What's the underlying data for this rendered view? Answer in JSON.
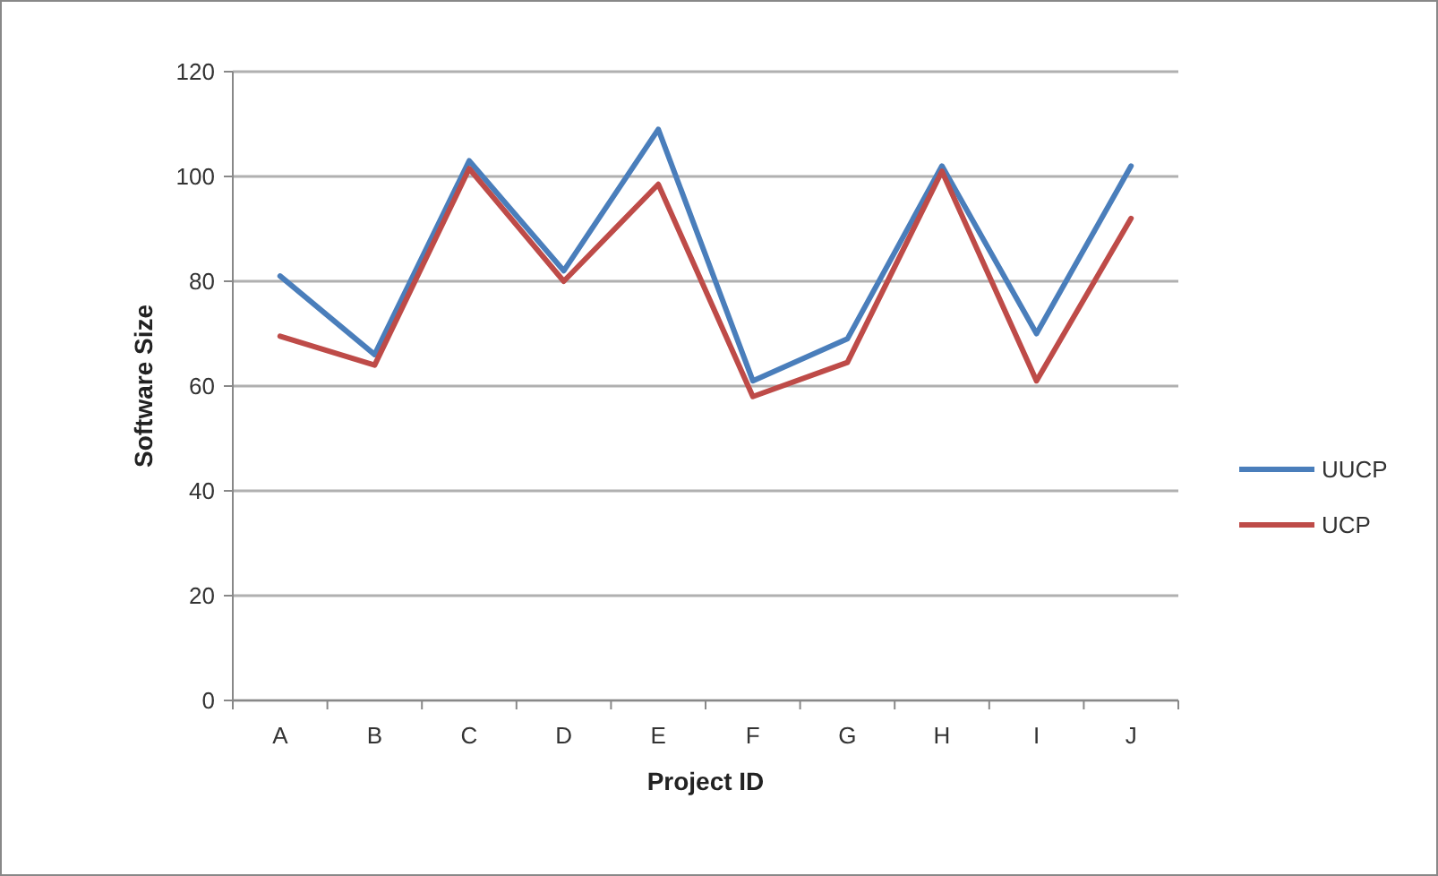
{
  "chart_data": {
    "type": "line",
    "xlabel": "Project ID",
    "ylabel": "Software Size",
    "categories": [
      "A",
      "B",
      "C",
      "D",
      "E",
      "F",
      "G",
      "H",
      "I",
      "J"
    ],
    "series": [
      {
        "name": "UUCP",
        "color": "#4a7ebb",
        "values": [
          81,
          66,
          103,
          82,
          109,
          61,
          69,
          102,
          70,
          102
        ]
      },
      {
        "name": "UCP",
        "color": "#be4b48",
        "values": [
          69.5,
          64,
          101.5,
          80,
          98.5,
          58,
          64.5,
          101,
          61,
          92
        ]
      }
    ],
    "ylim": [
      0,
      120
    ],
    "yticks": [
      0,
      20,
      40,
      60,
      80,
      100,
      120
    ],
    "grid": "y",
    "legend": "right",
    "marker": "none",
    "line_style": "solid"
  }
}
